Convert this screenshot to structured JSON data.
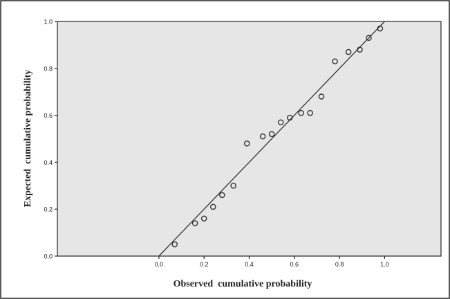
{
  "chart_data": {
    "type": "scatter",
    "title": "",
    "xlabel": "Observed  cumulative probability",
    "ylabel": "Expected  cumulative probability",
    "xlim": [
      -0.45,
      1.25
    ],
    "ylim": [
      0.0,
      1.0
    ],
    "x_ticks": [
      0.0,
      0.2,
      0.4,
      0.6,
      0.8,
      1.0
    ],
    "x_tick_labels": [
      "0.0",
      "0.2",
      "0.4",
      "0.6",
      "0.8",
      "1.0"
    ],
    "y_ticks": [
      0.0,
      0.2,
      0.4,
      0.6,
      0.8,
      1.0
    ],
    "y_tick_labels": [
      "0.0",
      "0.2",
      "0.4",
      "0.6",
      "0.8",
      "1.0"
    ],
    "grid": false,
    "background_color": "#e6e6e6",
    "marker_color": "#333333",
    "line_color": "#333333",
    "reference_line": {
      "from": [
        0.0,
        0.0
      ],
      "to": [
        1.0,
        1.0
      ]
    },
    "points": [
      {
        "x": 0.07,
        "y": 0.05
      },
      {
        "x": 0.16,
        "y": 0.14
      },
      {
        "x": 0.2,
        "y": 0.16
      },
      {
        "x": 0.24,
        "y": 0.21
      },
      {
        "x": 0.28,
        "y": 0.26
      },
      {
        "x": 0.33,
        "y": 0.3
      },
      {
        "x": 0.39,
        "y": 0.48
      },
      {
        "x": 0.46,
        "y": 0.51
      },
      {
        "x": 0.5,
        "y": 0.52
      },
      {
        "x": 0.54,
        "y": 0.57
      },
      {
        "x": 0.58,
        "y": 0.59
      },
      {
        "x": 0.63,
        "y": 0.61
      },
      {
        "x": 0.67,
        "y": 0.61
      },
      {
        "x": 0.72,
        "y": 0.68
      },
      {
        "x": 0.78,
        "y": 0.83
      },
      {
        "x": 0.84,
        "y": 0.87
      },
      {
        "x": 0.89,
        "y": 0.88
      },
      {
        "x": 0.93,
        "y": 0.93
      },
      {
        "x": 0.98,
        "y": 0.97
      }
    ]
  }
}
